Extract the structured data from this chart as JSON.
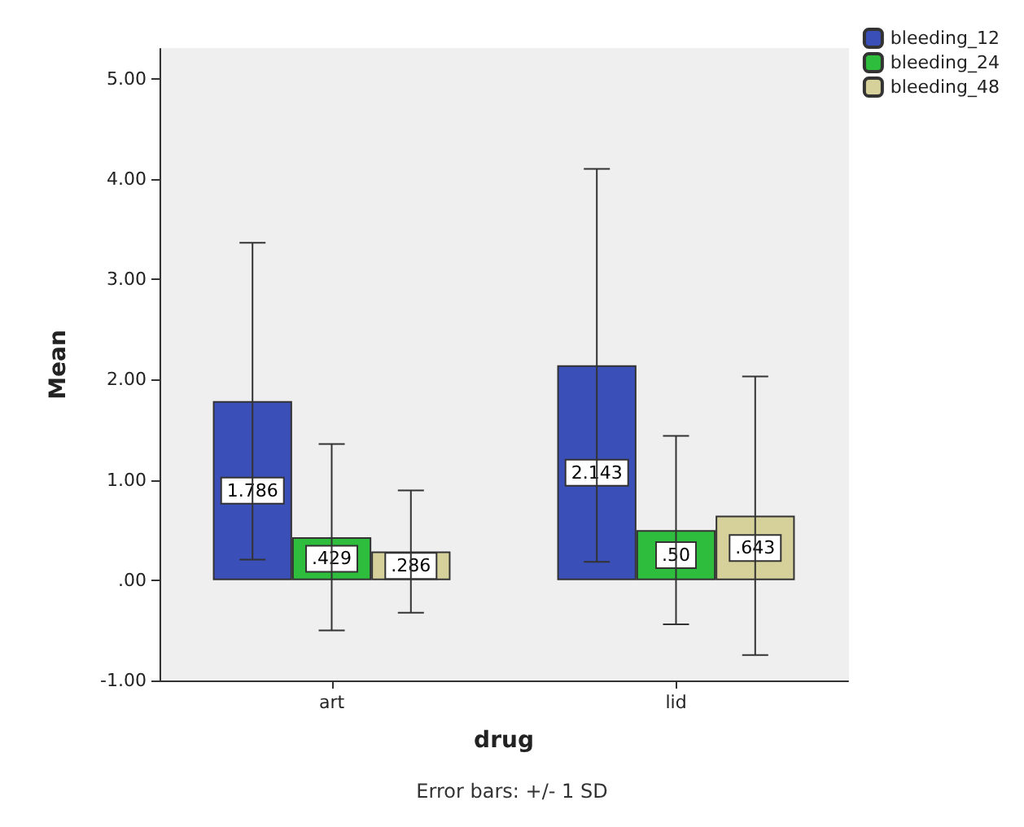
{
  "chart_data": {
    "type": "bar",
    "xlabel": "drug",
    "ylabel": "Mean",
    "categories": [
      "art",
      "lid"
    ],
    "series": [
      {
        "name": "bleeding_12",
        "color": "#3b4fb8",
        "values": [
          1.786,
          2.143
        ],
        "errors": [
          1.58,
          1.96
        ],
        "value_labels": [
          "1.786",
          "2.143"
        ]
      },
      {
        "name": "bleeding_24",
        "color": "#2ebd3c",
        "values": [
          0.429,
          0.5
        ],
        "errors": [
          0.93,
          0.94
        ],
        "value_labels": [
          ".429",
          ".50"
        ]
      },
      {
        "name": "bleeding_48",
        "color": "#d6d19b",
        "values": [
          0.286,
          0.643
        ],
        "errors": [
          0.61,
          1.39
        ],
        "value_labels": [
          ".286",
          ".643"
        ]
      }
    ],
    "ylim": [
      -1,
      5.3
    ],
    "yticks": [
      {
        "value": -1,
        "label": "-1.00"
      },
      {
        "value": 0,
        "label": ".00"
      },
      {
        "value": 1,
        "label": "1.00"
      },
      {
        "value": 2,
        "label": "2.00"
      },
      {
        "value": 3,
        "label": "3.00"
      },
      {
        "value": 4,
        "label": "4.00"
      },
      {
        "value": 5,
        "label": "5.00"
      }
    ],
    "grid": false,
    "legend": "top right",
    "annotations": [
      "Error bars: +/- 1 SD"
    ]
  }
}
